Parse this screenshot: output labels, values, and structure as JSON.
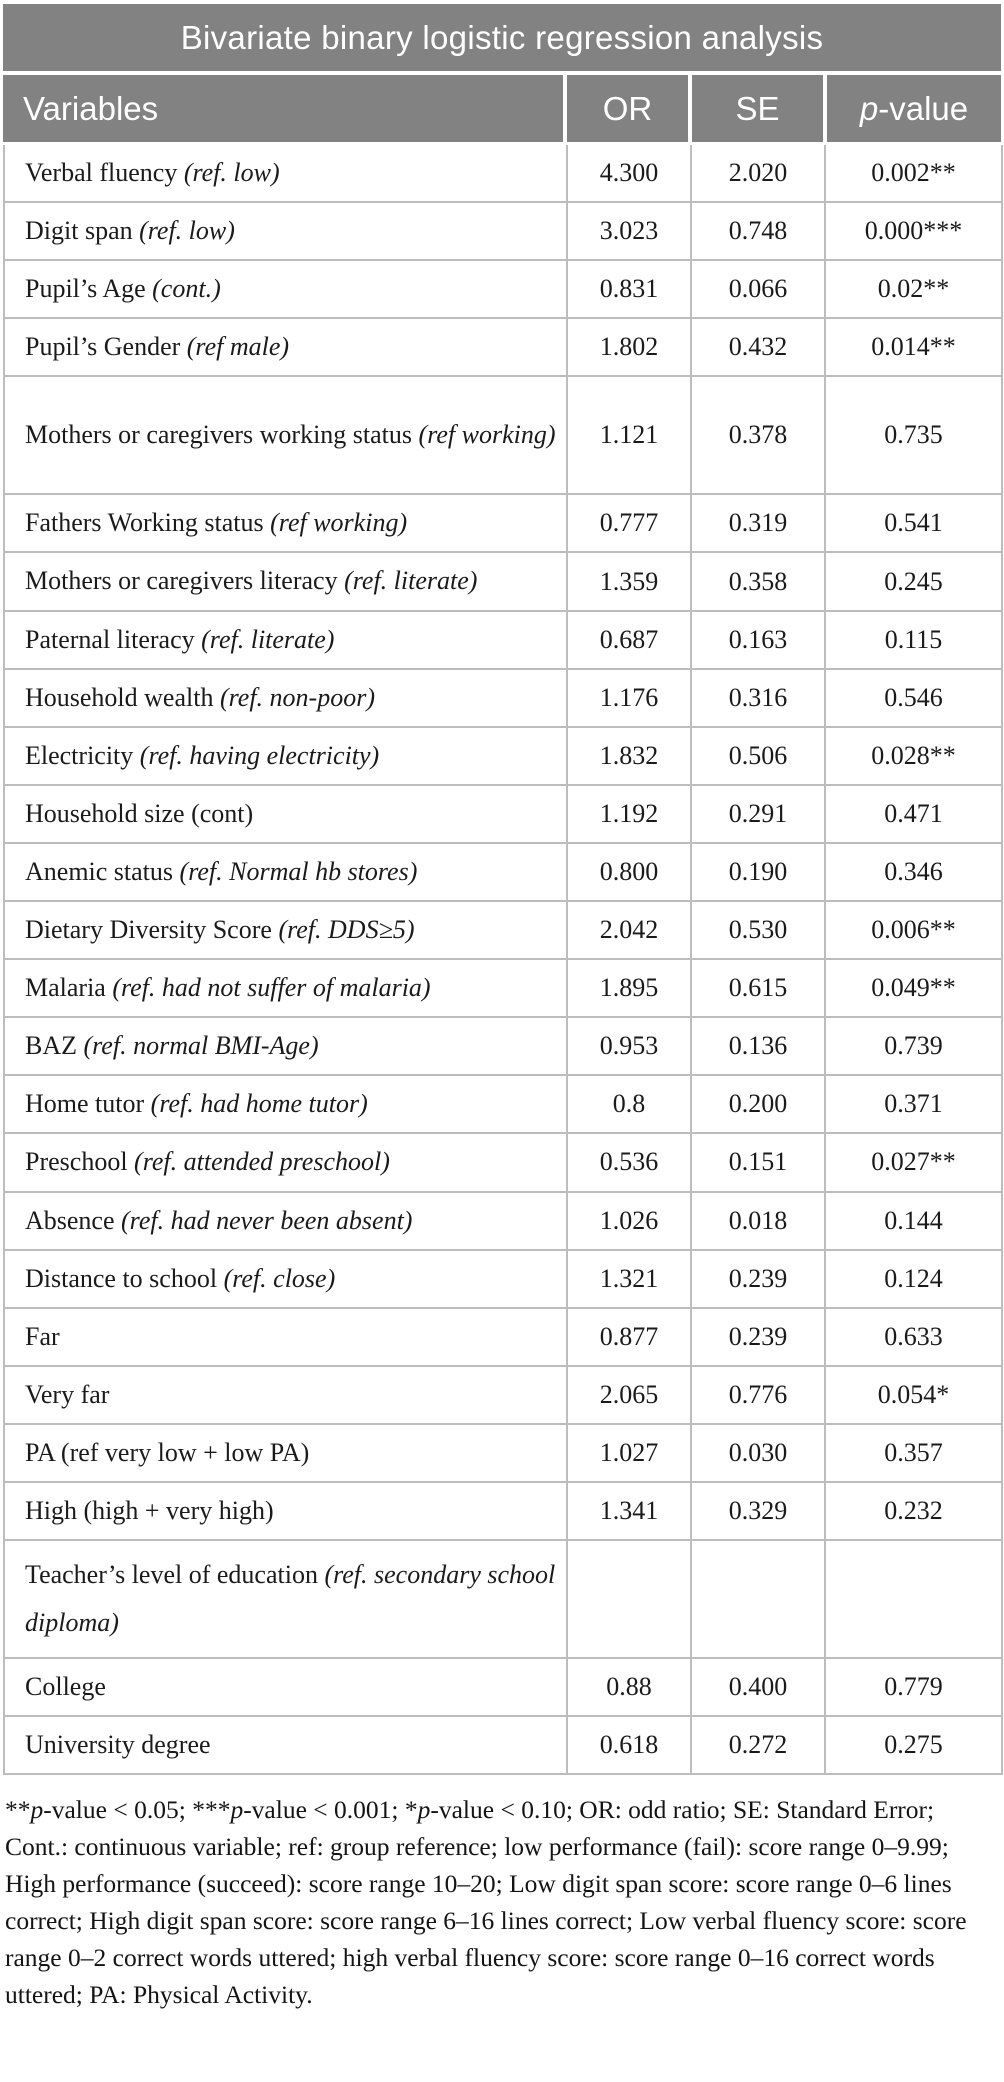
{
  "title": "Bivariate binary logistic regression analysis",
  "header": {
    "columns": [
      {
        "key": "variables",
        "segments": [
          {
            "t": "Variables"
          }
        ]
      },
      {
        "key": "or",
        "segments": [
          {
            "t": "OR"
          }
        ]
      },
      {
        "key": "se",
        "segments": [
          {
            "t": "SE"
          }
        ]
      },
      {
        "key": "p-value",
        "segments": [
          {
            "t": "p",
            "i": true
          },
          {
            "t": "-value"
          }
        ]
      }
    ]
  },
  "table": {
    "rows": [
      {
        "name": "Verbal fluency",
        "ref": "(ref. low)",
        "ref_italic": true,
        "or": "4.300",
        "se": "2.020",
        "p": "0.002**"
      },
      {
        "name": "Digit span",
        "ref": "(ref. low)",
        "ref_italic": true,
        "or": "3.023",
        "se": "0.748",
        "p": "0.000***"
      },
      {
        "name": "Pupil’s Age",
        "ref": "(cont.)",
        "ref_italic": true,
        "or": "0.831",
        "se": "0.066",
        "p": "0.02**"
      },
      {
        "name": "Pupil’s Gender",
        "ref": "(ref male)",
        "ref_italic": true,
        "or": "1.802",
        "se": "0.432",
        "p": "0.014**"
      },
      {
        "name": "Mothers or caregivers working status",
        "ref": "(ref working)",
        "ref_italic": true,
        "or": "1.121",
        "se": "0.378",
        "p": "0.735",
        "tall": true
      },
      {
        "name": "Fathers Working status",
        "ref": "(ref working)",
        "ref_italic": true,
        "or": "0.777",
        "se": "0.319",
        "p": "0.541"
      },
      {
        "name": "Mothers or caregivers literacy",
        "ref": "(ref. literate)",
        "ref_italic": true,
        "or": "1.359",
        "se": "0.358",
        "p": "0.245"
      },
      {
        "name": "Paternal literacy",
        "ref": "(ref. literate)",
        "ref_italic": true,
        "or": "0.687",
        "se": "0.163",
        "p": "0.115"
      },
      {
        "name": "Household wealth",
        "ref": "(ref. non-poor)",
        "ref_italic": true,
        "or": "1.176",
        "se": "0.316",
        "p": "0.546"
      },
      {
        "name": "Electricity",
        "ref": "(ref. having electricity)",
        "ref_italic": true,
        "or": "1.832",
        "se": "0.506",
        "p": "0.028**"
      },
      {
        "name": "Household size (cont)",
        "ref": "",
        "ref_italic": false,
        "or": "1.192",
        "se": "0.291",
        "p": "0.471"
      },
      {
        "name": "Anemic status",
        "ref": "(ref. Normal hb stores)",
        "ref_italic": true,
        "or": "0.800",
        "se": "0.190",
        "p": "0.346"
      },
      {
        "name": "Dietary Diversity Score",
        "ref": "(ref. DDS≥5)",
        "ref_italic": true,
        "or": "2.042",
        "se": "0.530",
        "p": "0.006**"
      },
      {
        "name": "Malaria",
        "ref": "(ref. had not suffer of malaria)",
        "ref_italic": true,
        "or": "1.895",
        "se": "0.615",
        "p": "0.049**"
      },
      {
        "name": "BAZ",
        "ref": "(ref. normal BMI-Age)",
        "ref_italic": true,
        "or": "0.953",
        "se": "0.136",
        "p": "0.739"
      },
      {
        "name": "Home tutor",
        "ref": "(ref. had home tutor)",
        "ref_italic": true,
        "or": "0.8",
        "se": "0.200",
        "p": "0.371"
      },
      {
        "name": "Preschool",
        "ref": "(ref. attended preschool)",
        "ref_italic": true,
        "or": "0.536",
        "se": "0.151",
        "p": "0.027**"
      },
      {
        "name": "Absence",
        "ref": "(ref. had never been absent)",
        "ref_italic": true,
        "or": "1.026",
        "se": "0.018",
        "p": "0.144"
      },
      {
        "name": "Distance to school",
        "ref": "(ref. close)",
        "ref_italic": true,
        "or": "1.321",
        "se": "0.239",
        "p": "0.124"
      },
      {
        "name": "Far",
        "ref": "",
        "ref_italic": false,
        "or": "0.877",
        "se": "0.239",
        "p": "0.633"
      },
      {
        "name": "Very far",
        "ref": "",
        "ref_italic": false,
        "or": "2.065",
        "se": "0.776",
        "p": "0.054*"
      },
      {
        "name": "PA (ref very low + low PA)",
        "ref": "",
        "ref_italic": false,
        "or": "1.027",
        "se": "0.030",
        "p": "0.357"
      },
      {
        "name": "High (high + very high)",
        "ref": "",
        "ref_italic": false,
        "or": "1.341",
        "se": "0.329",
        "p": "0.232"
      },
      {
        "name": "Teacher’s level of education",
        "ref": "(ref. secondary school diploma)",
        "ref_italic": true,
        "or": "",
        "se": "",
        "p": "",
        "tall": true
      },
      {
        "name": "College",
        "ref": "",
        "ref_italic": false,
        "or": "0.88",
        "se": "0.400",
        "p": "0.779"
      },
      {
        "name": "University degree",
        "ref": "",
        "ref_italic": false,
        "or": "0.618",
        "se": "0.272",
        "p": "0.275"
      }
    ]
  },
  "footnote": {
    "segments": [
      {
        "t": "**"
      },
      {
        "t": "p",
        "i": true
      },
      {
        "t": "-value < 0.05; "
      },
      {
        "t": "***"
      },
      {
        "t": "p",
        "i": true
      },
      {
        "t": "-value < 0.001; "
      },
      {
        "t": "*"
      },
      {
        "t": "p",
        "i": true
      },
      {
        "t": "-value < 0.10; OR: odd ratio; SE: Standard Error; Cont.: continuous variable; ref: group reference; low performance (fail): score range 0–9.99; High performance (succeed): score range 10–20; Low digit span score: score range 0–6 lines correct; High digit span score: score range 6–16 lines correct; Low verbal fluency score: score range 0–2 correct words uttered; high verbal fluency score: score range 0–16 correct words uttered; PA: Physical Activity."
      }
    ]
  },
  "colors": {
    "header_bg": "#828282",
    "header_text": "#ffffff",
    "border": "#bdbdbd",
    "body_text": "#1a1a1a"
  }
}
